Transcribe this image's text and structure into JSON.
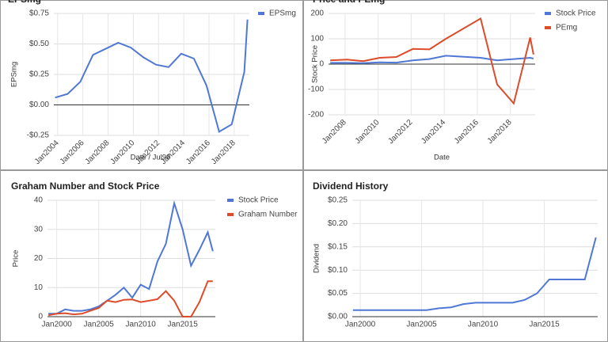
{
  "chart_data": [
    {
      "type": "line",
      "title": "EPSmg",
      "x_label": "Date / Jul99",
      "y_label": "EPSmg",
      "legend": "right",
      "grid": true,
      "x": [
        2003.8,
        2004.8,
        2005.8,
        2006.8,
        2007.8,
        2008.8,
        2009.8,
        2010.8,
        2011.8,
        2012.8,
        2013.8,
        2014.8,
        2015.8,
        2016.8,
        2017.8,
        2018.8,
        2019.05
      ],
      "series": [
        {
          "name": "EPSmg",
          "color": "#4f78d6",
          "values": [
            0.06,
            0.09,
            0.19,
            0.41,
            0.46,
            0.51,
            0.47,
            0.39,
            0.33,
            0.31,
            0.42,
            0.38,
            0.16,
            -0.22,
            -0.16,
            0.27,
            0.7
          ]
        }
      ],
      "xlim": [
        2003.7,
        2019.2
      ],
      "xticks": [
        {
          "value": 2004,
          "label": "Jan2004"
        },
        {
          "value": 2006,
          "label": "Jan2006"
        },
        {
          "value": 2008,
          "label": "Jan2008"
        },
        {
          "value": 2010,
          "label": "Jan2010"
        },
        {
          "value": 2012,
          "label": "Jan2012"
        },
        {
          "value": 2014,
          "label": "Jan2014"
        },
        {
          "value": 2016,
          "label": "Jan2016"
        },
        {
          "value": 2018,
          "label": "Jan2018"
        }
      ],
      "ylim": [
        -0.25,
        0.75
      ],
      "yticks": [
        {
          "value": -0.25,
          "label": "-$0.25"
        },
        {
          "value": 0,
          "label": "$0.00"
        },
        {
          "value": 0.25,
          "label": "$0.25"
        },
        {
          "value": 0.5,
          "label": "$0.50"
        },
        {
          "value": 0.75,
          "label": "$0.75"
        }
      ]
    },
    {
      "type": "line",
      "title": "Price and PEmg",
      "x_label": "Date",
      "y_label": "Stock Price",
      "legend": "right",
      "grid": true,
      "x": [
        2007.1,
        2008.1,
        2009.1,
        2010.1,
        2011.1,
        2012.1,
        2013.1,
        2014.1,
        2016.2,
        2017.2,
        2018.2,
        2019.2,
        2019.4
      ],
      "series": [
        {
          "name": "Stock Price",
          "color": "#4f78d6",
          "values": [
            5,
            5,
            4,
            7,
            6,
            15,
            20,
            33,
            25,
            15,
            20,
            25,
            22
          ]
        },
        {
          "name": "PEmg",
          "color": "#dc4b2a",
          "values": [
            15,
            18,
            12,
            25,
            28,
            60,
            58,
            100,
            180,
            -80,
            -155,
            105,
            38
          ]
        }
      ],
      "xlim": [
        2007.0,
        2019.5
      ],
      "xticks": [
        {
          "value": 2008,
          "label": "Jan2008"
        },
        {
          "value": 2010,
          "label": "Jan2010"
        },
        {
          "value": 2012,
          "label": "Jan2012"
        },
        {
          "value": 2014,
          "label": "Jan2014"
        },
        {
          "value": 2016,
          "label": "Jan2016"
        },
        {
          "value": 2018,
          "label": "Jan2018"
        }
      ],
      "ylim": [
        -200,
        200
      ],
      "yticks": [
        -200,
        -100,
        0,
        100,
        200
      ]
    },
    {
      "type": "line",
      "title": "Graham Number and Stock Price",
      "y_label": "Price",
      "legend": "right",
      "grid": true,
      "x": [
        1999,
        2000,
        2001,
        2002,
        2003,
        2004,
        2005,
        2006,
        2007,
        2008,
        2009,
        2010,
        2011,
        2012,
        2013,
        2014,
        2015,
        2016,
        2017,
        2018,
        2018.6
      ],
      "series": [
        {
          "name": "Stock Price",
          "color": "#4f78d6",
          "values": [
            1,
            1,
            2.5,
            2,
            2,
            2.5,
            3.5,
            5.5,
            7.5,
            10,
            6.5,
            11,
            9.5,
            19,
            25,
            39,
            30,
            17.5,
            23,
            29,
            22.5
          ]
        },
        {
          "name": "Graham Number",
          "color": "#dc4b2a",
          "values": [
            0.5,
            1,
            1.2,
            0.8,
            1,
            2,
            3,
            5.5,
            5,
            5.8,
            5.9,
            5,
            5.5,
            6,
            8.8,
            5.5,
            0,
            0,
            5,
            12.2,
            12.2
          ]
        }
      ],
      "xlim": [
        1998.9,
        2018.9
      ],
      "xticks": [
        {
          "value": 2000,
          "label": "Jan2000"
        },
        {
          "value": 2005,
          "label": "Jan2005"
        },
        {
          "value": 2010,
          "label": "Jan2010"
        },
        {
          "value": 2015,
          "label": "Jan2015"
        }
      ],
      "ylim": [
        0,
        40
      ],
      "yticks": [
        0,
        10,
        20,
        30,
        40
      ]
    },
    {
      "type": "line",
      "title": "Dividend History",
      "y_label": "Dividend",
      "legend": "none",
      "grid": true,
      "x": [
        1999.4,
        2000.4,
        2001.4,
        2002.4,
        2003.4,
        2004.4,
        2005.4,
        2006.4,
        2007.4,
        2008.4,
        2009.4,
        2010.4,
        2011.4,
        2012.4,
        2013.4,
        2014.4,
        2015.4,
        2016.4,
        2017.4,
        2018.3,
        2019.2
      ],
      "series": [
        {
          "color": "#4f78d6",
          "values": [
            0.014,
            0.014,
            0.014,
            0.014,
            0.014,
            0.014,
            0.014,
            0.018,
            0.02,
            0.027,
            0.03,
            0.03,
            0.03,
            0.03,
            0.036,
            0.05,
            0.08,
            0.08,
            0.08,
            0.08,
            0.17
          ]
        }
      ],
      "xlim": [
        1999.35,
        2019.35
      ],
      "xticks": [
        {
          "value": 2000,
          "label": "Jan2000"
        },
        {
          "value": 2005,
          "label": "Jan2005"
        },
        {
          "value": 2010,
          "label": "Jan2010"
        },
        {
          "value": 2015,
          "label": "Jan2015"
        }
      ],
      "ylim": [
        0,
        0.25
      ],
      "yticks": [
        {
          "value": 0,
          "label": "$0.00"
        },
        {
          "value": 0.05,
          "label": "$0.05"
        },
        {
          "value": 0.1,
          "label": "$0.10"
        },
        {
          "value": 0.15,
          "label": "$0.15"
        },
        {
          "value": 0.2,
          "label": "$0.20"
        },
        {
          "value": 0.25,
          "label": "$0.25"
        }
      ]
    }
  ]
}
